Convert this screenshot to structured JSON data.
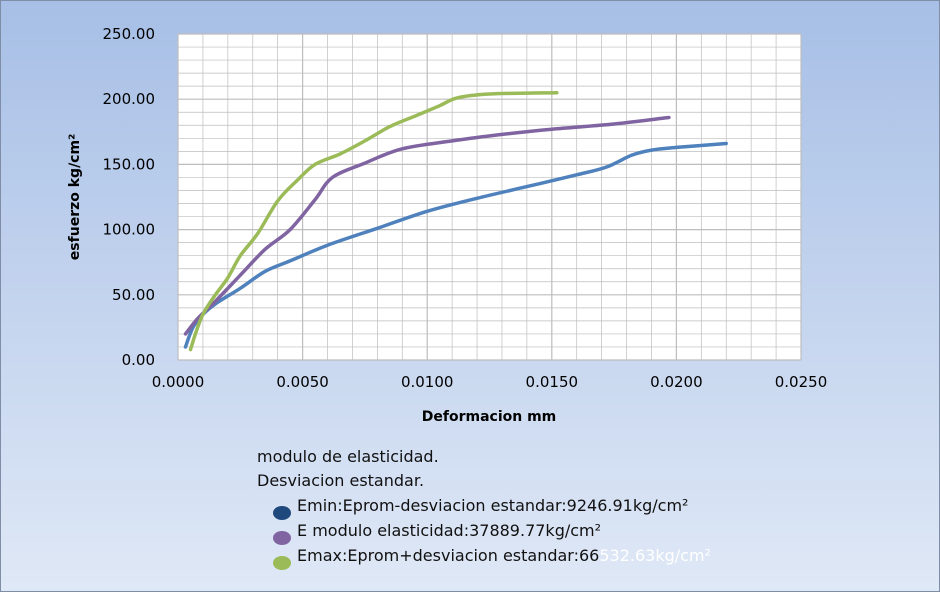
{
  "colors": {
    "bg_top": "#a7bfe6",
    "bg_bottom": "#dfe8f6",
    "plot_bg": "#ffffff",
    "grid": "#bdbdbd",
    "emin": "#4f81bd",
    "eprom": "#8064a2",
    "emax": "#9bbb59",
    "emin_marker": "#1f497d",
    "legend_tail": "#ffffff"
  },
  "chart_data": {
    "type": "line",
    "xlabel": "Deformacion mm",
    "ylabel": "esfuerzo kg/cm²",
    "xlim": [
      0,
      0.025
    ],
    "ylim": [
      0,
      250
    ],
    "x_ticks": [
      "0.0000",
      "0.0050",
      "0.0100",
      "0.0150",
      "0.0200",
      "0.0250"
    ],
    "y_ticks": [
      "0.00",
      "50.00",
      "100.00",
      "150.00",
      "200.00",
      "250.00"
    ],
    "grid": true,
    "series": [
      {
        "name": "Emin:Eprom-desviacion estandar:9246.91kg/cm²",
        "color_key": "emin",
        "x": [
          0.0003,
          0.0006,
          0.001,
          0.0015,
          0.0025,
          0.0035,
          0.0045,
          0.006,
          0.008,
          0.01,
          0.012,
          0.014,
          0.016,
          0.0172,
          0.0182,
          0.019,
          0.02,
          0.022
        ],
        "y": [
          10,
          25,
          35,
          43,
          55,
          68,
          76,
          88,
          101,
          114,
          124,
          133,
          142,
          148,
          157,
          161,
          163,
          166
        ]
      },
      {
        "name": "E modulo elasticidad:37889.77kg/cm²",
        "color_key": "eprom",
        "x": [
          0.0003,
          0.0008,
          0.0015,
          0.0025,
          0.0035,
          0.0045,
          0.0055,
          0.0062,
          0.0075,
          0.009,
          0.011,
          0.013,
          0.015,
          0.0175,
          0.0197
        ],
        "y": [
          20,
          32,
          45,
          65,
          85,
          100,
          123,
          140,
          151,
          162,
          168,
          173,
          177,
          181,
          186
        ]
      },
      {
        "name": "Emax:Eprom+desviacion estandar:66532.63kg/cm²",
        "color_key": "emax",
        "x": [
          0.0005,
          0.0007,
          0.001,
          0.0015,
          0.002,
          0.0025,
          0.0032,
          0.004,
          0.0048,
          0.0055,
          0.0065,
          0.0075,
          0.0085,
          0.0095,
          0.0105,
          0.0112,
          0.0125,
          0.0152
        ],
        "y": [
          8,
          20,
          35,
          50,
          63,
          80,
          97,
          122,
          138,
          150,
          158,
          168,
          179,
          187,
          195,
          201,
          204,
          205
        ]
      }
    ]
  },
  "legend": {
    "line1": "modulo de elasticidad.",
    "line2": "Desviacion estandar.",
    "emin_label": "Emin:Eprom-desviacion estandar:9246.91kg/cm²",
    "eprom_label": "E modulo elasticidad:37889.77kg/cm²",
    "emax_label_head": "Emax:Eprom+desviacion estandar:66",
    "emax_label_tail": "532.63kg/cm²"
  }
}
